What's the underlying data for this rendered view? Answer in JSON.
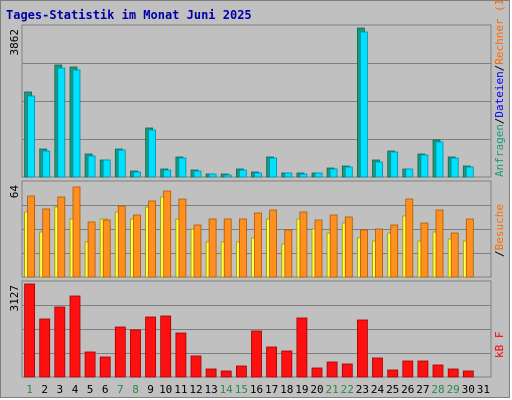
{
  "chart_data": {
    "type": "bar",
    "title": "Tages-Statistik im Monat Juni 2025",
    "days": [
      "1",
      "2",
      "3",
      "4",
      "5",
      "6",
      "7",
      "8",
      "9",
      "10",
      "11",
      "12",
      "13",
      "14",
      "15",
      "16",
      "17",
      "18",
      "19",
      "20",
      "21",
      "22",
      "23",
      "24",
      "25",
      "26",
      "27",
      "28",
      "29",
      "30",
      "31"
    ],
    "weekend_days": [
      "1",
      "7",
      "8",
      "14",
      "15",
      "21",
      "22",
      "28",
      "29"
    ],
    "colors": {
      "background": "#c0c0c0",
      "panel_border": "#7f7f7f",
      "gridline": "#7f7f7f",
      "title": "#0000aa",
      "weekday_label": "#000000",
      "weekend_label": "#2a8a4a"
    },
    "panels": [
      {
        "id": "requests",
        "ytick_max": "3862",
        "ylim": [
          0,
          3862
        ],
        "grid": true,
        "series": [
          {
            "name": "Anfragen",
            "color": "#1a9a7a",
            "dark": "#0f6a52",
            "values": [
              2200,
              720,
              2900,
              2850,
              590,
              450,
              730,
              150,
              1260,
              200,
              530,
              180,
              90,
              70,
              210,
              130,
              530,
              110,
              100,
              110,
              240,
              290,
              3862,
              440,
              680,
              220,
              600,
              960,
              530,
              290
            ]
          },
          {
            "name": "Dateien",
            "color": "#00e0ff",
            "dark": "#0090b0",
            "values": [
              2100,
              680,
              2820,
              2780,
              550,
              430,
              690,
              140,
              1220,
              180,
              480,
              160,
              80,
              60,
              190,
              110,
              500,
              100,
              90,
              100,
              210,
              270,
              3760,
              400,
              640,
              200,
              560,
              920,
              500,
              270
            ]
          }
        ]
      },
      {
        "id": "hosts",
        "ytick_max": "64",
        "ylim": [
          0,
          64
        ],
        "grid": true,
        "series": [
          {
            "name": "Rechner (IP-Adressen)",
            "color": "#ffff40",
            "dark": "#a09000",
            "values": [
              45,
              31,
              48,
              40,
              24,
              40,
              45,
              40,
              48,
              55,
              40,
              33,
              24,
              24,
              24,
              27,
              40,
              23,
              40,
              33,
              30,
              37,
              27,
              25,
              30,
              42,
              25,
              31,
              26,
              25
            ]
          },
          {
            "name": "Besuche",
            "color": "#ff9020",
            "dark": "#b05800",
            "values": [
              56,
              47,
              55,
              62,
              38,
              39,
              49,
              43,
              52,
              59,
              54,
              36,
              40,
              40,
              40,
              44,
              46,
              32,
              45,
              39,
              43,
              41,
              32,
              33,
              36,
              54,
              37,
              46,
              30,
              40
            ]
          }
        ]
      },
      {
        "id": "kbytes",
        "ytick_max": "3127",
        "ylim": [
          0,
          3127
        ],
        "grid": true,
        "series": [
          {
            "name": "kB F",
            "color": "#ff1010",
            "dark": "#a00000",
            "values": [
              3127,
              1940,
              2350,
              2720,
              840,
              660,
              1680,
              1580,
              2030,
              2050,
              1480,
              700,
              260,
              190,
              370,
              1560,
              1000,
              890,
              1970,
              310,
              500,
              440,
              1920,
              650,
              220,
              530,
              530,
              420,
              280,
              190
            ]
          }
        ]
      }
    ],
    "legend_right": [
      {
        "text": "Anfragen",
        "color": "#1a9a7a"
      },
      {
        "text": "/",
        "color": "#000000"
      },
      {
        "text": "Dateien",
        "color": "#0000ff"
      },
      {
        "text": "/",
        "color": "#000000"
      },
      {
        "text": "Rechner (IP-Adressen)",
        "color": "#ff6a00"
      },
      {
        "text": "/",
        "color": "#000000"
      },
      {
        "text": "Besuche",
        "color": "#ff6a00"
      },
      {
        "text": "kB F",
        "color": "#ff0000"
      }
    ]
  }
}
